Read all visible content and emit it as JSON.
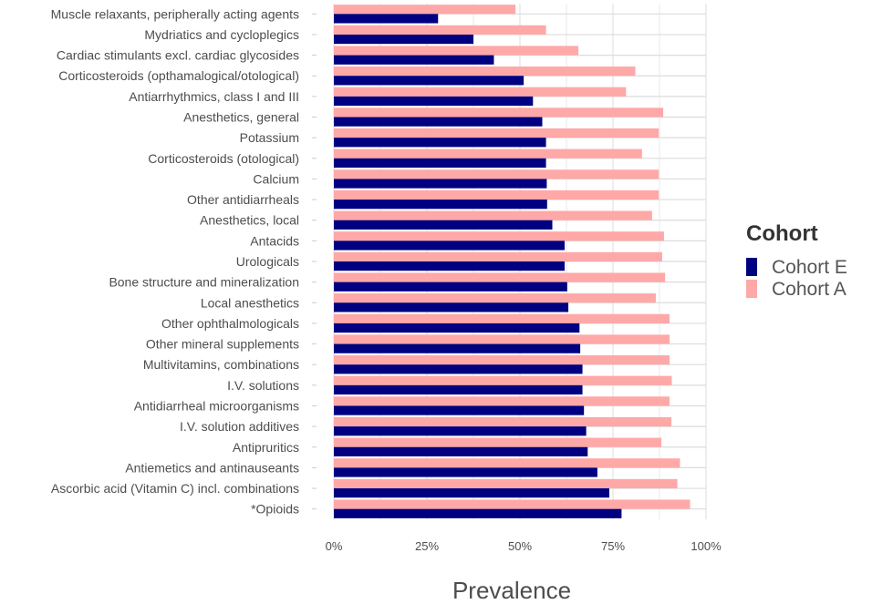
{
  "chart_data": {
    "type": "bar",
    "orientation": "horizontal",
    "xlabel": "Prevalence",
    "xlim": [
      0,
      100
    ],
    "x_ticks": [
      "0%",
      "25%",
      "50%",
      "75%",
      "100%"
    ],
    "grid": true,
    "legend_title": "Cohort",
    "legend_position": "right",
    "categories": [
      "Muscle relaxants, peripherally acting agents",
      "Mydriatics and cycloplegics",
      "Cardiac stimulants excl. cardiac glycosides",
      "Corticosteroids (opthamalogical/otological)",
      "Antiarrhythmics, class I and III",
      "Anesthetics, general",
      "Potassium",
      "Corticosteroids (otological)",
      "Calcium",
      "Other antidiarrheals",
      "Anesthetics, local",
      "Antacids",
      "Urologicals",
      "Bone structure and mineralization",
      "Local anesthetics",
      "Other ophthalmologicals",
      "Other mineral supplements",
      "Multivitamins, combinations",
      "I.V. solutions",
      "Antidiarrheal microorganisms",
      "I.V. solution additives",
      "Antipruritics",
      "Antiemetics and antinauseants",
      "Ascorbic acid (Vitamin C) incl. combinations",
      "*Opioids"
    ],
    "series": [
      {
        "name": "Cohort E",
        "color": "#000080",
        "values": [
          28,
          37.5,
          43,
          51,
          53.5,
          56,
          57,
          57,
          57.2,
          57.3,
          58.7,
          62,
          62,
          62.7,
          63,
          66,
          66.2,
          66.8,
          66.8,
          67.2,
          67.8,
          68.2,
          70.8,
          74,
          77.3
        ]
      },
      {
        "name": "Cohort A",
        "color": "#FFA8A8",
        "values": [
          48.8,
          57,
          65.7,
          81,
          78.5,
          88.5,
          87.3,
          82.8,
          87.3,
          87.3,
          85.5,
          88.7,
          88.2,
          89,
          86.5,
          90.2,
          90.2,
          90.2,
          90.8,
          90.2,
          90.7,
          88,
          93,
          92.3,
          95.7
        ]
      }
    ]
  }
}
